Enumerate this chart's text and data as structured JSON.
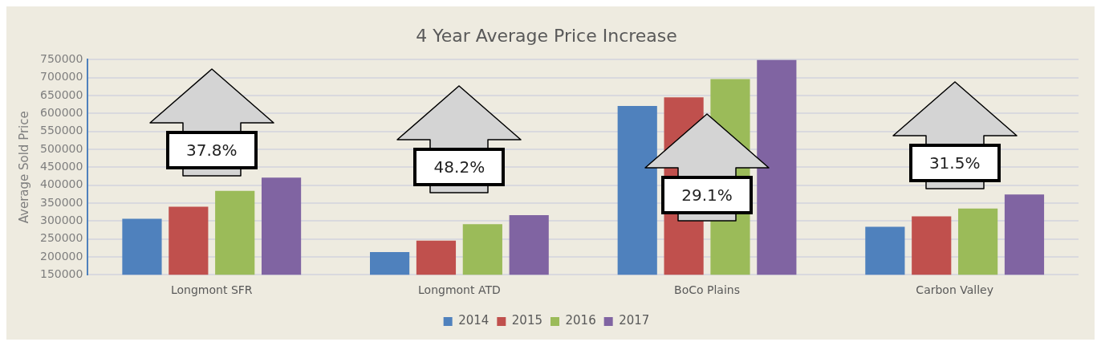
{
  "chart_data": {
    "type": "bar",
    "title": "4 Year Average Price Increase",
    "ylabel": "Average Sold Price",
    "categories": [
      "Longmont SFR",
      "Longmont ATD",
      "BoCo Plains",
      "Carbon Valley"
    ],
    "series": [
      {
        "name": "2014",
        "color": "#4f81bd",
        "values": [
          306000,
          213000,
          621000,
          284000
        ]
      },
      {
        "name": "2015",
        "color": "#c0504d",
        "values": [
          340000,
          245000,
          645000,
          313000
        ]
      },
      {
        "name": "2016",
        "color": "#9bbb59",
        "values": [
          384000,
          291000,
          696000,
          335000
        ]
      },
      {
        "name": "2017",
        "color": "#8064a2",
        "values": [
          421000,
          316000,
          750000,
          374000
        ]
      }
    ],
    "ylim": [
      150000,
      750000
    ],
    "yticks": [
      150000,
      200000,
      250000,
      300000,
      350000,
      400000,
      450000,
      500000,
      550000,
      600000,
      650000,
      700000,
      750000
    ],
    "grid": "y",
    "legend": "bottom",
    "annotations": [
      "37.8%",
      "48.2%",
      "29.1%",
      "31.5%"
    ]
  }
}
